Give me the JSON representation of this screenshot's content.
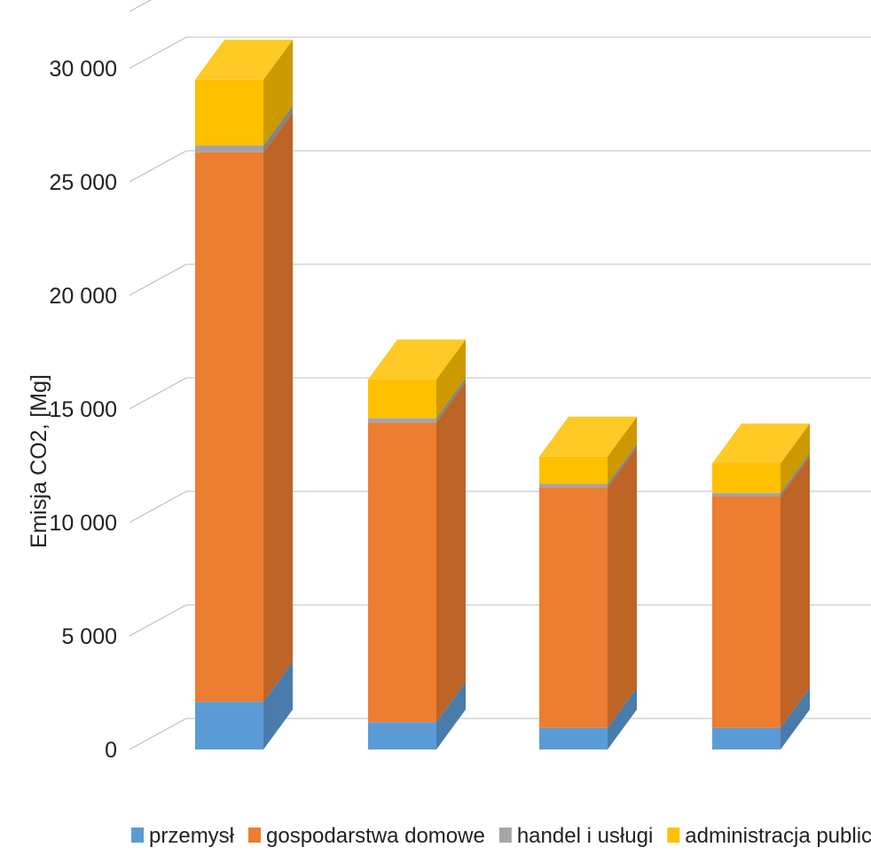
{
  "chart_data": {
    "type": "bar",
    "stacked": true,
    "style": "3d-column",
    "categories": [
      "",
      "",
      "",
      ""
    ],
    "series": [
      {
        "name": "przemysł",
        "color": "#5b9bd5",
        "values": [
          2100,
          1200,
          950,
          950
        ]
      },
      {
        "name": "gospodarstwa domowe",
        "color": "#ed7d31",
        "values": [
          24200,
          13200,
          10600,
          10200
        ]
      },
      {
        "name": "handel i usługi",
        "color": "#a5a5a5",
        "values": [
          300,
          200,
          150,
          150
        ]
      },
      {
        "name": "administracja publiczna",
        "color": "#ffc000",
        "values": [
          2900,
          1700,
          1200,
          1300
        ]
      }
    ],
    "ylabel": "Emisja CO2, [Mg]",
    "xlabel": "",
    "ylim": [
      0,
      32500
    ],
    "yticks": [
      0,
      5000,
      10000,
      15000,
      20000,
      25000,
      30000
    ],
    "ytick_labels": [
      "0",
      "5 000",
      "10 000",
      "15 000",
      "20 000",
      "25 000",
      "30 000"
    ],
    "grid": true,
    "legend_position": "bottom"
  }
}
